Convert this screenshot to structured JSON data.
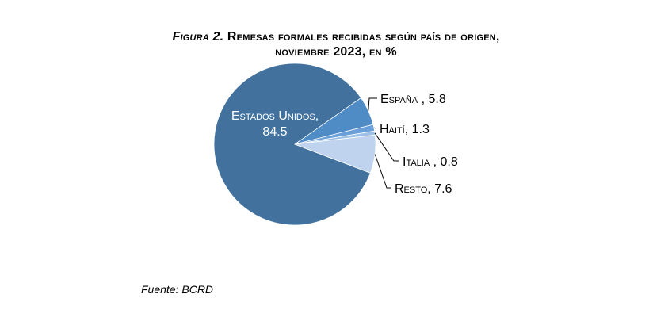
{
  "title_line1_fig": "Figura 2.",
  "title_line1_rest": " Remesas formales recibidas según país de origen,",
  "title_line2": "noviembre 2023, en %",
  "source": "Fuente: BCRD",
  "chart_data": {
    "type": "pie",
    "slices": [
      {
        "name": "Estados Unidos",
        "label": "Estados Unidos,",
        "value_label": "84.5",
        "value": 84.5,
        "color": "#41719C"
      },
      {
        "name": "España",
        "label": "España , 5.8",
        "value": 5.8,
        "color": "#4F8BC5"
      },
      {
        "name": "Haití",
        "label": "Haití, 1.3",
        "value": 1.3,
        "color": "#6A9FD8"
      },
      {
        "name": "Italia",
        "label": "Italia , 0.8",
        "value": 0.8,
        "color": "#9DC0E7"
      },
      {
        "name": "Resto",
        "label": "Resto, 7.6",
        "value": 7.6,
        "color": "#BFD3EE"
      }
    ],
    "start_angle_deg": 0,
    "direction": "clockwise"
  }
}
